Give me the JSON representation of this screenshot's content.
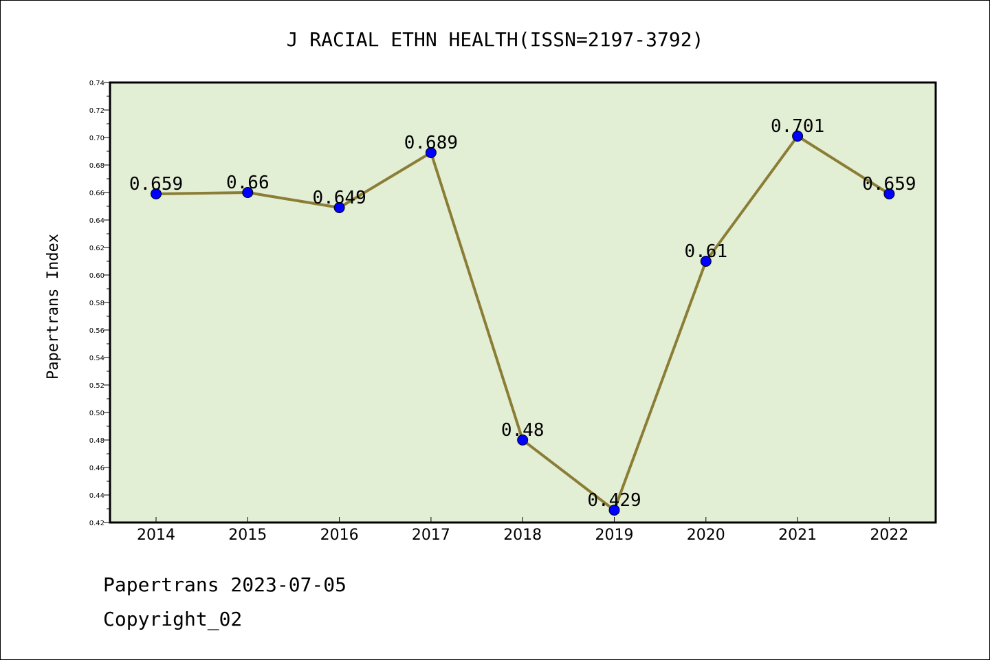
{
  "chart_data": {
    "type": "line",
    "title": "J RACIAL ETHN HEALTH(ISSN=2197-3792)",
    "xlabel": "",
    "ylabel": "Papertrans Index",
    "categories": [
      "2014",
      "2015",
      "2016",
      "2017",
      "2018",
      "2019",
      "2020",
      "2021",
      "2022"
    ],
    "series": [
      {
        "values": [
          0.659,
          0.66,
          0.649,
          0.689,
          0.48,
          0.429,
          0.61,
          0.701,
          0.659
        ],
        "labels": [
          "0.659",
          "0.66",
          "0.649",
          "0.689",
          "0.48",
          "0.429",
          "0.61",
          "0.701",
          "0.659"
        ]
      }
    ],
    "ylim": [
      0.42,
      0.74
    ],
    "yticks": [
      "0.42",
      "0.44",
      "0.46",
      "0.48",
      "0.50",
      "0.52",
      "0.54",
      "0.56",
      "0.58",
      "0.60",
      "0.62",
      "0.64",
      "0.66",
      "0.68",
      "0.70",
      "0.72",
      "0.74"
    ],
    "grid": false,
    "legend": "none",
    "colors": {
      "plot_background": "#e2efd5",
      "line": "#8b7d35",
      "marker": "#0000ff"
    }
  },
  "footer": {
    "line1": "Papertrans 2023-07-05",
    "line2": "Copyright_02"
  }
}
